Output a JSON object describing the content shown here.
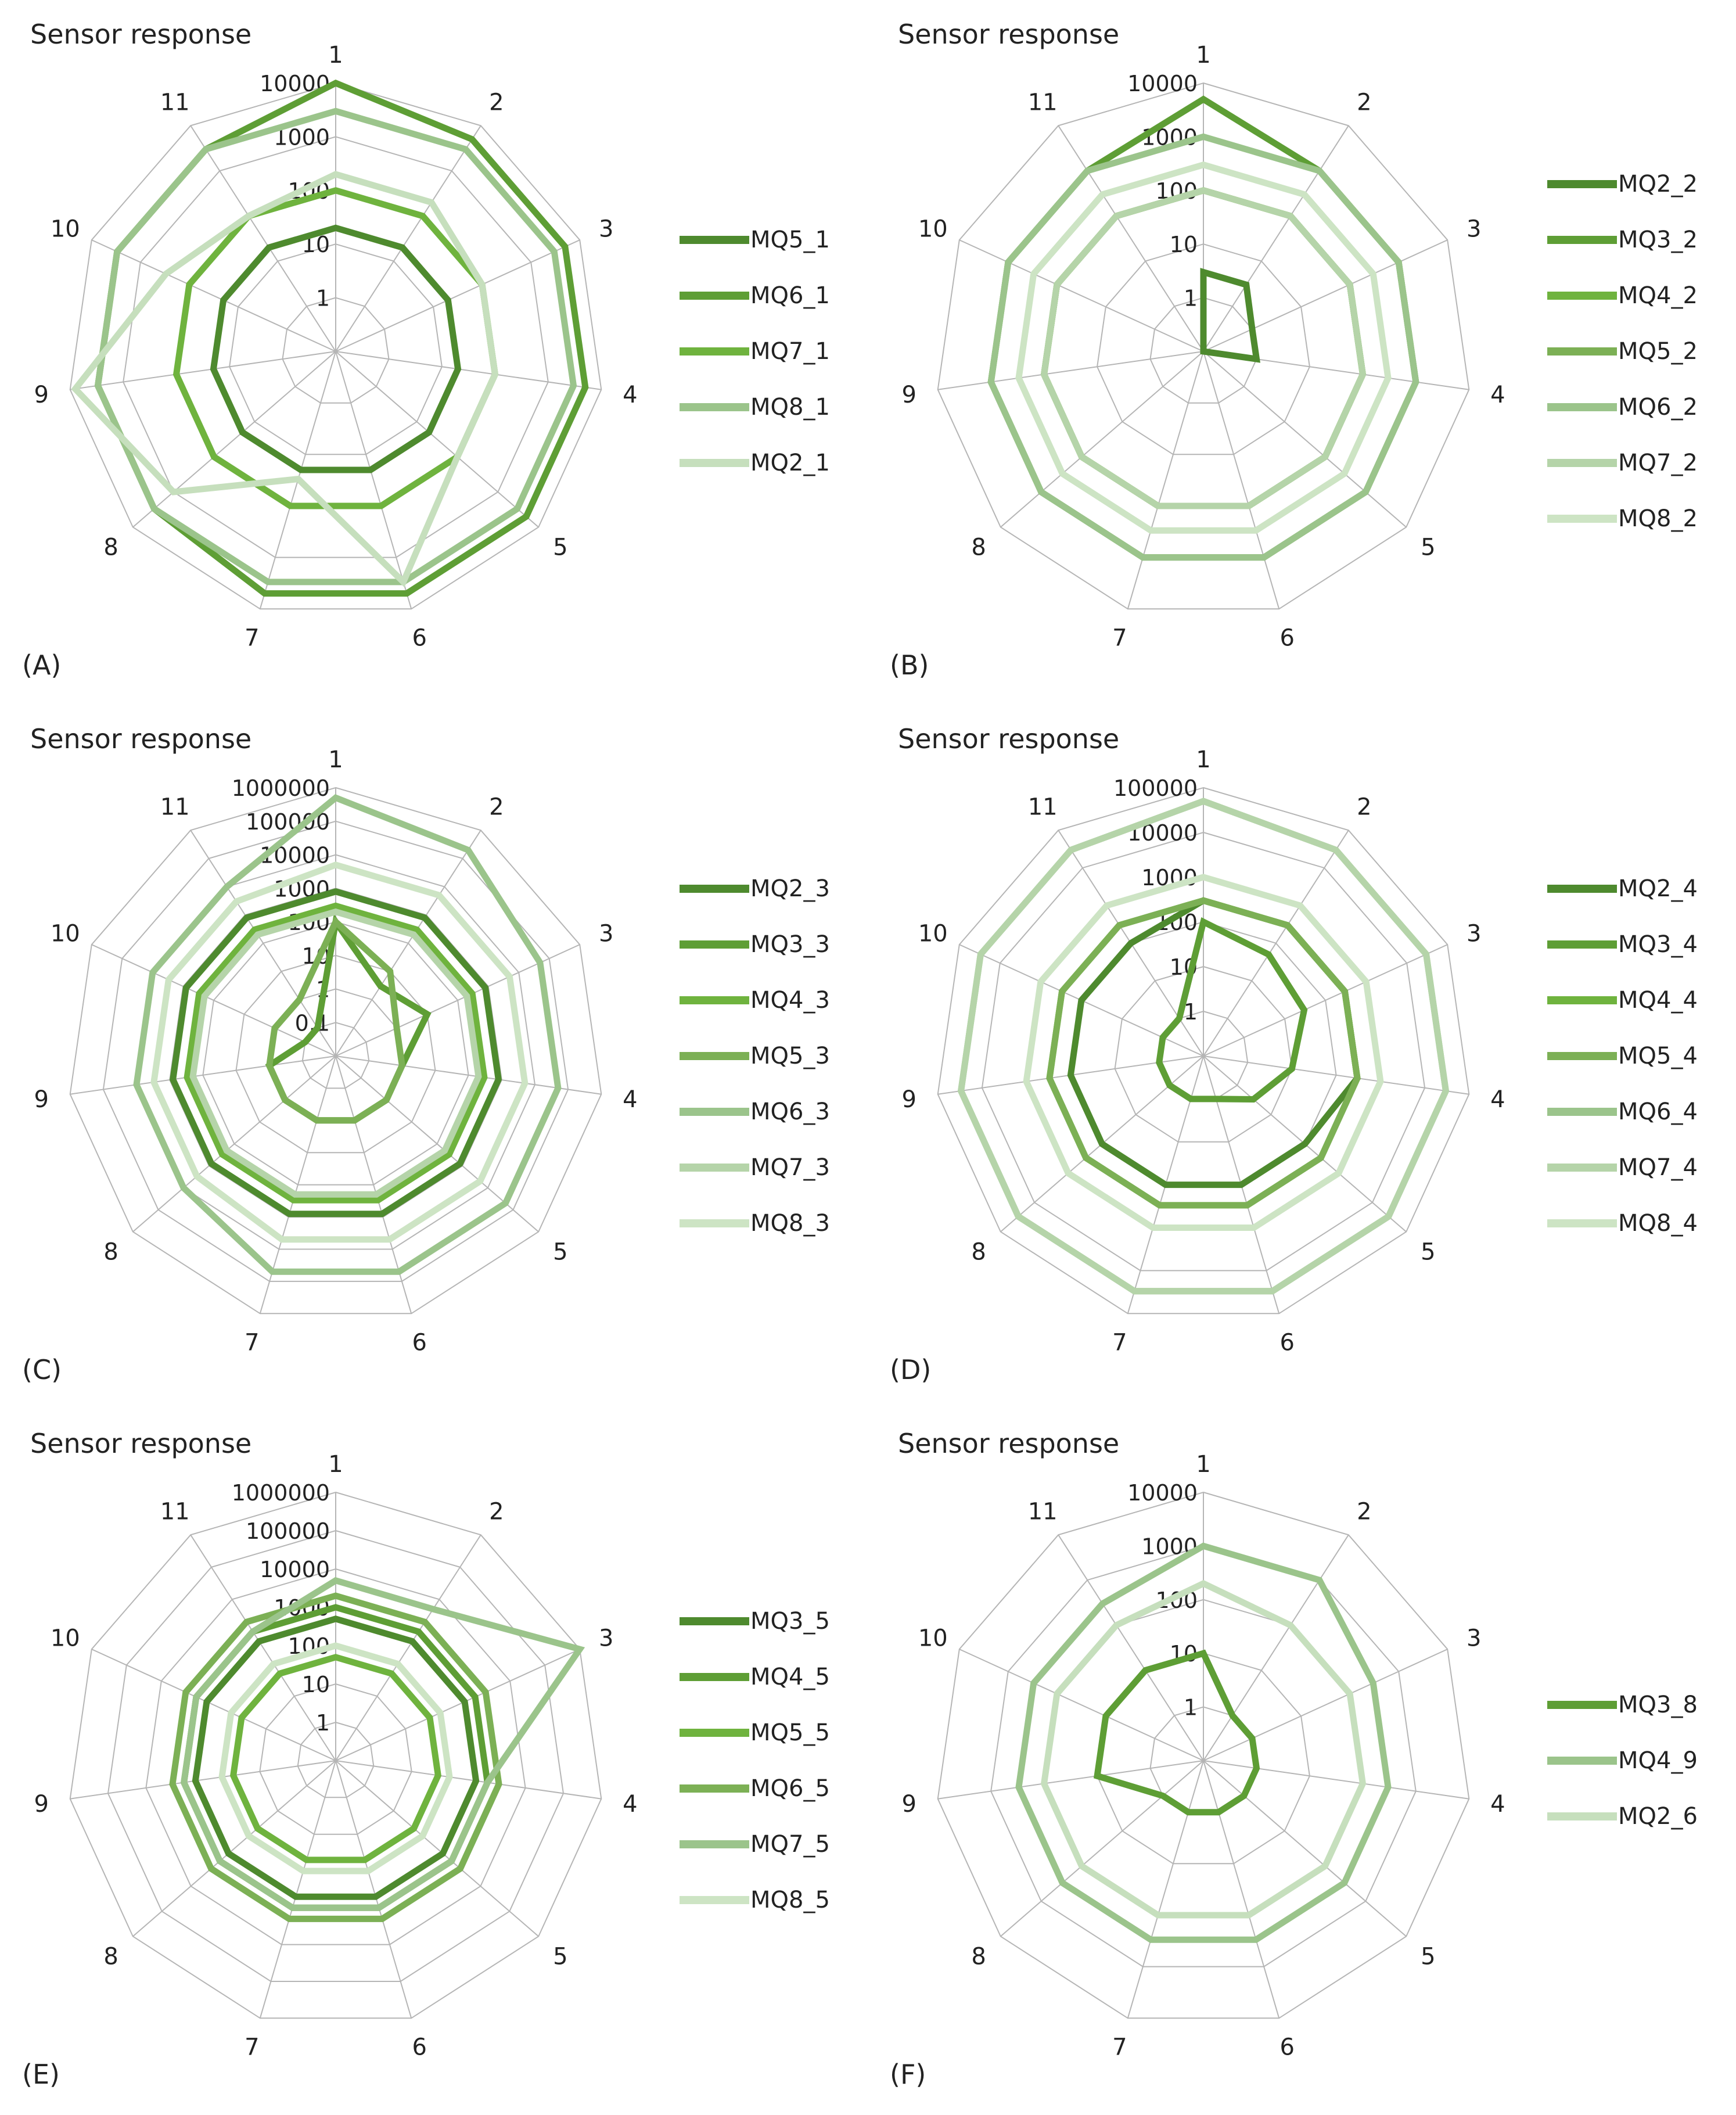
{
  "figure": {
    "panels": [
      {
        "label": "(A)",
        "title": "Sensor response"
      },
      {
        "label": "(B)",
        "title": "Sensor response"
      },
      {
        "label": "(C)",
        "title": "Sensor response"
      },
      {
        "label": "(D)",
        "title": "Sensor response"
      },
      {
        "label": "(E)",
        "title": "Sensor response"
      },
      {
        "label": "(F)",
        "title": "Sensor response"
      }
    ]
  },
  "chart_data": [
    {
      "type": "radar",
      "label": "(A)",
      "title": "Sensor response",
      "scale": "log",
      "min": 0.1,
      "max": 10000,
      "ring_labels": [
        "1",
        "10",
        "100",
        "1000",
        "10000"
      ],
      "categories": [
        "1",
        "2",
        "3",
        "4",
        "5",
        "6",
        "7",
        "8",
        "9",
        "10",
        "11"
      ],
      "colors": [
        "#4e8a2e",
        "#5e9e35",
        "#6fb33e",
        "#9bc48b",
        "#c6dfbd"
      ],
      "series": [
        {
          "name": "MQ5_1",
          "values": [
            20,
            20,
            20,
            20,
            20,
            20,
            20,
            20,
            20,
            20,
            20
          ]
        },
        {
          "name": "MQ6_1",
          "values": [
            10000,
            5000,
            5000,
            5000,
            5000,
            5000,
            5000,
            3000,
            3000,
            3000,
            3000
          ]
        },
        {
          "name": "MQ7_1",
          "values": [
            100,
            100,
            100,
            100,
            100,
            100,
            100,
            100,
            100,
            100,
            100
          ]
        },
        {
          "name": "MQ8_1",
          "values": [
            3000,
            3000,
            3000,
            3000,
            3000,
            3000,
            3000,
            3000,
            3000,
            3000,
            3000
          ]
        },
        {
          "name": "MQ2_1",
          "values": [
            200,
            200,
            100,
            100,
            100,
            3000,
            30,
            1000,
            8000,
            300,
            100
          ]
        }
      ]
    },
    {
      "type": "radar",
      "label": "(B)",
      "title": "Sensor response",
      "scale": "log",
      "min": 0.1,
      "max": 10000,
      "ring_labels": [
        "1",
        "10",
        "100",
        "1000",
        "10000"
      ],
      "categories": [
        "1",
        "2",
        "3",
        "4",
        "5",
        "6",
        "7",
        "8",
        "9",
        "10",
        "11"
      ],
      "colors": [
        "#4e8a2e",
        "#5e9e35",
        "#6fb33e",
        "#7cb055",
        "#9bc48b",
        "#b5d4a9",
        "#cde4c4"
      ],
      "series": [
        {
          "name": "MQ2_2",
          "values": [
            3,
            3,
            1,
            1,
            0.1,
            0.1,
            0.1,
            0.1,
            0.1,
            0.1,
            0.1
          ]
        },
        {
          "name": "MQ3_2",
          "values": [
            5000,
            1000,
            1000,
            1000,
            1000,
            1000,
            1000,
            1000,
            1000,
            1000,
            1000
          ]
        },
        {
          "name": "MQ4_2",
          "values": [
            100,
            100,
            100,
            100,
            100,
            100,
            100,
            100,
            100,
            100,
            100
          ]
        },
        {
          "name": "MQ5_2",
          "values": [
            100,
            100,
            100,
            100,
            100,
            100,
            100,
            100,
            100,
            100,
            100
          ]
        },
        {
          "name": "MQ6_2",
          "values": [
            1000,
            1000,
            1000,
            1000,
            1000,
            1000,
            1000,
            1000,
            1000,
            1000,
            1000
          ]
        },
        {
          "name": "MQ7_2",
          "values": [
            100,
            100,
            100,
            100,
            100,
            100,
            100,
            100,
            100,
            100,
            100
          ]
        },
        {
          "name": "MQ8_2",
          "values": [
            300,
            300,
            300,
            300,
            300,
            300,
            300,
            300,
            300,
            300,
            300
          ]
        }
      ]
    },
    {
      "type": "radar",
      "label": "(C)",
      "title": "Sensor response",
      "scale": "log",
      "min": 0.01,
      "max": 1000000,
      "ring_labels": [
        "0.1",
        "1",
        "10",
        "100",
        "1000",
        "10000",
        "100000",
        "1000000"
      ],
      "categories": [
        "1",
        "2",
        "3",
        "4",
        "5",
        "6",
        "7",
        "8",
        "9",
        "10",
        "11"
      ],
      "colors": [
        "#4e8a2e",
        "#5e9e35",
        "#6fb33e",
        "#7cb055",
        "#9bc48b",
        "#b5d4a9",
        "#cde4c4"
      ],
      "series": [
        {
          "name": "MQ2_3",
          "values": [
            800,
            800,
            800,
            800,
            800,
            800,
            800,
            800,
            800,
            800,
            800
          ]
        },
        {
          "name": "MQ3_3",
          "values": [
            100,
            3,
            10,
            1,
            1,
            1,
            1,
            1,
            1,
            0.1,
            0.1
          ]
        },
        {
          "name": "MQ4_3",
          "values": [
            300,
            300,
            300,
            300,
            300,
            300,
            300,
            300,
            300,
            300,
            300
          ]
        },
        {
          "name": "MQ5_3",
          "values": [
            100,
            10,
            1,
            1,
            1,
            1,
            1,
            1,
            1,
            1,
            1
          ]
        },
        {
          "name": "MQ6_3",
          "values": [
            500000,
            200000,
            50000,
            50000,
            50000,
            50000,
            50000,
            10000,
            10000,
            10000,
            10000
          ]
        },
        {
          "name": "MQ7_3",
          "values": [
            200,
            200,
            200,
            200,
            200,
            200,
            200,
            200,
            200,
            200,
            200
          ]
        },
        {
          "name": "MQ8_3",
          "values": [
            5000,
            5000,
            5000,
            5000,
            5000,
            5000,
            5000,
            3000,
            3000,
            3000,
            3000
          ]
        }
      ]
    },
    {
      "type": "radar",
      "label": "(D)",
      "title": "Sensor response",
      "scale": "log",
      "min": 0.1,
      "max": 100000,
      "ring_labels": [
        "1",
        "10",
        "100",
        "1000",
        "10000",
        "100000"
      ],
      "categories": [
        "1",
        "2",
        "3",
        "4",
        "5",
        "6",
        "7",
        "8",
        "9",
        "10",
        "11"
      ],
      "colors": [
        "#4e8a2e",
        "#5e9e35",
        "#6fb33e",
        "#7cb055",
        "#9bc48b",
        "#b5d4a9",
        "#cde4c4"
      ],
      "series": [
        {
          "name": "MQ2_4",
          "values": [
            300,
            300,
            300,
            300,
            100,
            100,
            100,
            100,
            100,
            100,
            100
          ]
        },
        {
          "name": "MQ3_4",
          "values": [
            100,
            50,
            30,
            10,
            3,
            1,
            1,
            1,
            1,
            1,
            1
          ]
        },
        {
          "name": "MQ4_4",
          "values": [
            300,
            300,
            300,
            300,
            300,
            300,
            300,
            300,
            300,
            300,
            300
          ]
        },
        {
          "name": "MQ5_4",
          "values": [
            300,
            300,
            300,
            300,
            300,
            300,
            300,
            300,
            300,
            300,
            300
          ]
        },
        {
          "name": "MQ6_4",
          "values": [
            50000,
            30000,
            30000,
            30000,
            30000,
            30000,
            30000,
            30000,
            30000,
            30000,
            30000
          ]
        },
        {
          "name": "MQ7_4",
          "values": [
            50000,
            30000,
            30000,
            30000,
            30000,
            30000,
            30000,
            30000,
            30000,
            30000,
            30000
          ]
        },
        {
          "name": "MQ8_4",
          "values": [
            1000,
            1000,
            1000,
            1000,
            1000,
            1000,
            1000,
            1000,
            1000,
            1000,
            1000
          ]
        }
      ]
    },
    {
      "type": "radar",
      "label": "(E)",
      "title": "Sensor response",
      "scale": "log",
      "min": 0.1,
      "max": 1000000,
      "ring_labels": [
        "1",
        "10",
        "100",
        "1000",
        "10000",
        "100000",
        "1000000"
      ],
      "categories": [
        "1",
        "2",
        "3",
        "4",
        "5",
        "6",
        "7",
        "8",
        "9",
        "10",
        "11"
      ],
      "colors": [
        "#4e8a2e",
        "#5e9e35",
        "#6fb33e",
        "#7cb055",
        "#9bc48b",
        "#cde4c4"
      ],
      "series": [
        {
          "name": "MQ3_5",
          "values": [
            500,
            500,
            500,
            500,
            500,
            500,
            500,
            500,
            500,
            500,
            500
          ]
        },
        {
          "name": "MQ4_5",
          "values": [
            1000,
            1000,
            1000,
            1000,
            1000,
            1000,
            1000,
            1000,
            1000,
            1000,
            1000
          ]
        },
        {
          "name": "MQ5_5",
          "values": [
            50,
            50,
            50,
            50,
            50,
            50,
            50,
            50,
            50,
            50,
            50
          ]
        },
        {
          "name": "MQ6_5",
          "values": [
            2000,
            2000,
            2000,
            2000,
            2000,
            2000,
            2000,
            2000,
            2000,
            2000,
            2000
          ]
        },
        {
          "name": "MQ7_5",
          "values": [
            5000,
            5000,
            1000000,
            1000,
            1000,
            1000,
            1000,
            1000,
            1000,
            1000,
            1000
          ]
        },
        {
          "name": "MQ8_5",
          "values": [
            100,
            100,
            100,
            100,
            100,
            100,
            100,
            100,
            100,
            100,
            100
          ]
        }
      ]
    },
    {
      "type": "radar",
      "label": "(F)",
      "title": "Sensor response",
      "scale": "log",
      "min": 0.1,
      "max": 10000,
      "ring_labels": [
        "1",
        "10",
        "100",
        "1000",
        "10000"
      ],
      "categories": [
        "1",
        "2",
        "3",
        "4",
        "5",
        "6",
        "7",
        "8",
        "9",
        "10",
        "11"
      ],
      "colors": [
        "#5e9e35",
        "#9bc48b",
        "#c6dfbd"
      ],
      "series": [
        {
          "name": "MQ3_8",
          "values": [
            10,
            1,
            1,
            1,
            1,
            1,
            1,
            1,
            10,
            10,
            10
          ]
        },
        {
          "name": "MQ4_9",
          "values": [
            1000,
            1000,
            300,
            300,
            300,
            300,
            300,
            300,
            300,
            300,
            300
          ]
        },
        {
          "name": "MQ2_6",
          "values": [
            200,
            100,
            100,
            100,
            100,
            100,
            100,
            100,
            100,
            100,
            100
          ]
        }
      ]
    }
  ]
}
